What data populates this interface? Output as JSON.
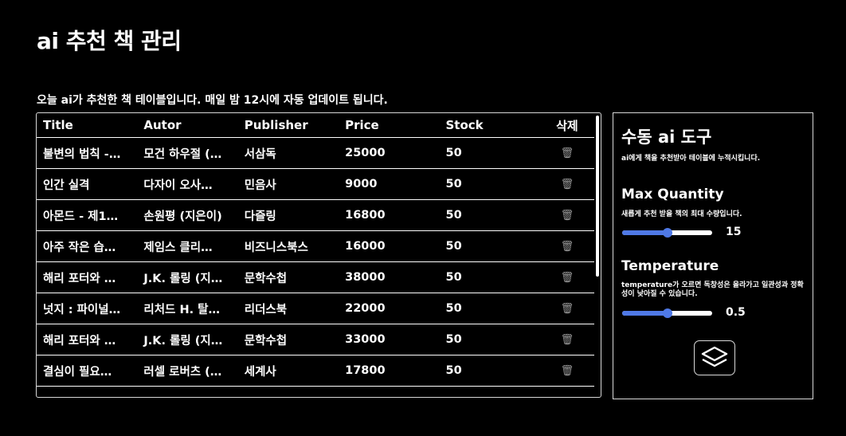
{
  "page": {
    "title": "ai 추천 책 관리",
    "subtitle": "오늘 ai가 추천한 책 테이블입니다. 매일 밤 12시에 자동 업데이트 됩니다."
  },
  "table": {
    "headers": [
      "Title",
      "Autor",
      "Publisher",
      "Price",
      "Stock",
      "삭제"
    ],
    "rows": [
      {
        "title": "불변의 법칙 -…",
        "author": "모건 하우절 (…",
        "publisher": "서삼독",
        "price": "25000",
        "stock": "50"
      },
      {
        "title": "인간 실격",
        "author": "다자이 오사…",
        "publisher": "민음사",
        "price": "9000",
        "stock": "50"
      },
      {
        "title": "아몬드 - 제1…",
        "author": "손원평 (지은이)",
        "publisher": "다즐링",
        "price": "16800",
        "stock": "50"
      },
      {
        "title": "아주 작은 습…",
        "author": "제임스 클리…",
        "publisher": "비즈니스북스",
        "price": "16000",
        "stock": "50"
      },
      {
        "title": "해리 포터와 …",
        "author": "J.K. 롤링 (지…",
        "publisher": "문학수첩",
        "price": "38000",
        "stock": "50"
      },
      {
        "title": "넛지 : 파이널…",
        "author": "리처드 H. 탈…",
        "publisher": "리더스북",
        "price": "22000",
        "stock": "50"
      },
      {
        "title": "해리 포터와 …",
        "author": "J.K. 롤링 (지…",
        "publisher": "문학수첩",
        "price": "33000",
        "stock": "50"
      },
      {
        "title": "결심이 필요…",
        "author": "러셀 로버츠 (…",
        "publisher": "세계사",
        "price": "17800",
        "stock": "50"
      }
    ],
    "delete_icon": "trash-icon"
  },
  "panel": {
    "title": "수동 ai 도구",
    "subtitle": "ai에게 책을 추천받아 테이블에 누적시킵니다.",
    "max_quantity": {
      "label": "Max Quantity",
      "desc": "새롭게 추천 받을 책의 최대 수량입니다.",
      "value": "15",
      "level": 0.5
    },
    "temperature": {
      "label": "Temperature",
      "desc": "temperature가 오르면 독창성은 올라가고 일관성과 정확성이 낮아질 수 있습니다.",
      "value": "0.5",
      "level": 0.5
    },
    "action_icon": "layers-icon"
  },
  "colors": {
    "accent": "#4f79e6",
    "background": "#000000",
    "text": "#ffffff"
  }
}
